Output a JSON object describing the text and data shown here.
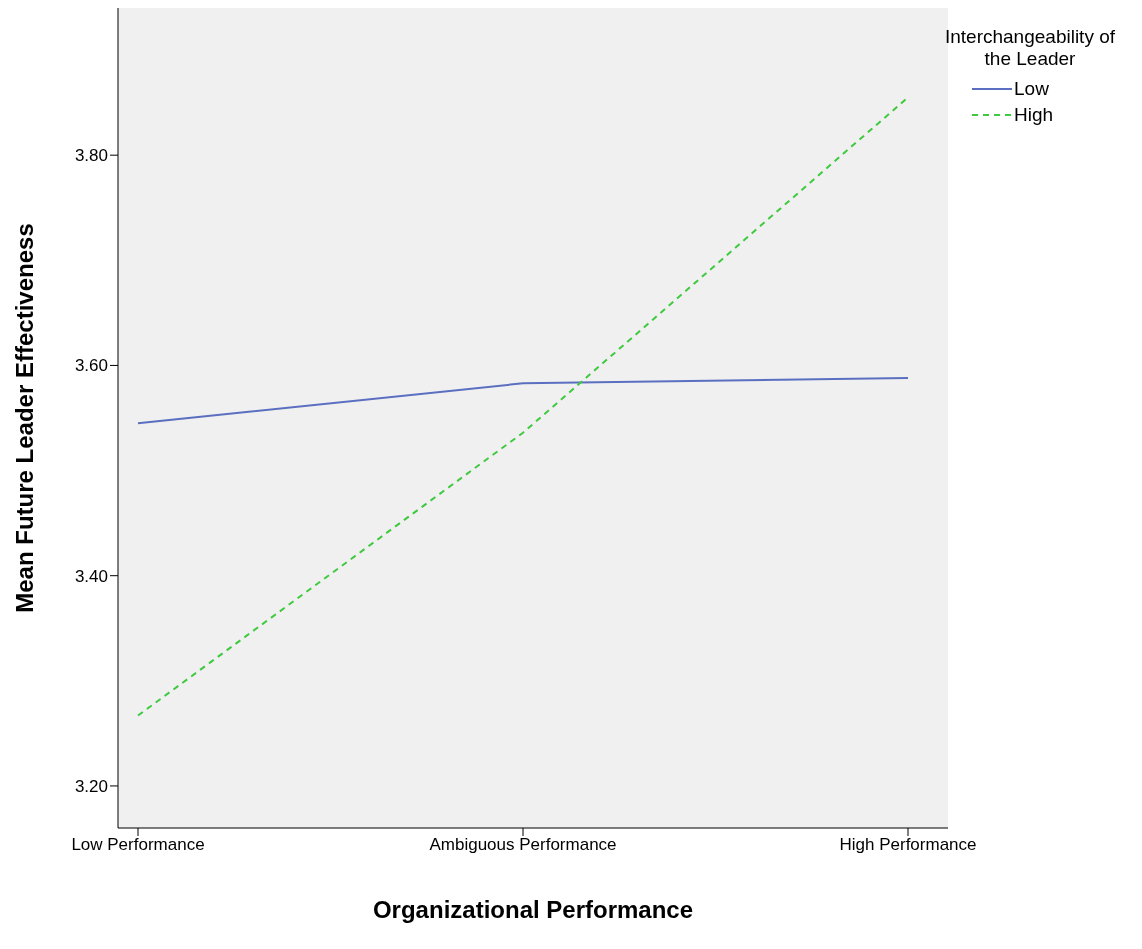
{
  "chart_data": {
    "type": "line",
    "xlabel": "Organizational Performance",
    "ylabel": "Mean Future Leader Effectiveness",
    "legend_title": "Interchangeability of the Leader",
    "legend": "top right",
    "grid": false,
    "categories": [
      "Low Performance",
      "Ambiguous Performance",
      "High Performance"
    ],
    "ylim": [
      3.16,
      3.94
    ],
    "yticks": [
      {
        "value": 3.2,
        "label": "3.20"
      },
      {
        "value": 3.4,
        "label": "3.40"
      },
      {
        "value": 3.6,
        "label": "3.60"
      },
      {
        "value": 3.8,
        "label": "3.80"
      }
    ],
    "series": [
      {
        "name": "Low",
        "color": "#5b6fc0",
        "line_style": "solid",
        "values": [
          3.545,
          3.583,
          3.588
        ]
      },
      {
        "name": "High",
        "color": "#3ec93e",
        "line_style": "dashed",
        "values": [
          3.267,
          3.536,
          3.855
        ]
      }
    ]
  }
}
